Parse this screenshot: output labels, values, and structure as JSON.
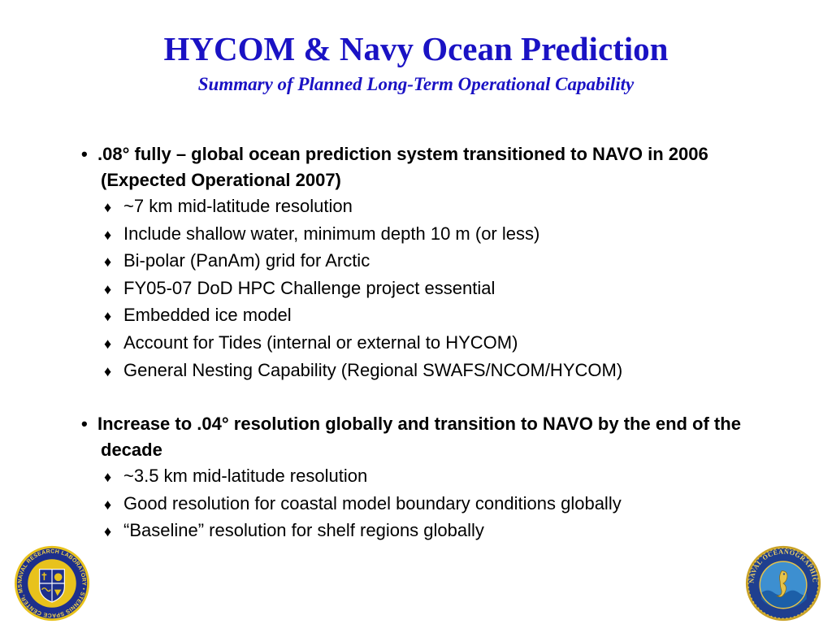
{
  "slide": {
    "title": "HYCOM & Navy Ocean Prediction",
    "subtitle": "Summary of Planned Long-Term Operational Capability"
  },
  "bullets": [
    {
      "text": ".08° fully – global ocean prediction system transitioned to NAVO in 2006 (Expected Operational 2007)",
      "subitems": [
        "~7 km mid-latitude resolution",
        "Include shallow water, minimum depth 10 m (or less)",
        "Bi-polar (PanAm) grid for Arctic",
        "FY05-07 DoD HPC Challenge project essential",
        "Embedded ice model",
        "Account for Tides (internal or external to HYCOM)",
        "General Nesting Capability (Regional SWAFS/NCOM/HYCOM)"
      ]
    },
    {
      "text": "Increase to .04° resolution globally and transition to NAVO by the end of the decade",
      "subitems": [
        "~3.5 km mid-latitude resolution",
        "Good resolution for coastal model boundary conditions globally",
        "“Baseline” resolution for shelf regions globally"
      ]
    }
  ],
  "symbols": {
    "bullet": "•",
    "subbullet": "♦"
  },
  "logos": {
    "left": {
      "icon": "naval-research-laboratory-seal-icon",
      "text": "NAVAL RESEARCH LABORATORY • STENNIS SPACE CENTER, MS"
    },
    "right": {
      "icon": "naval-oceanographic-office-seal-icon",
      "text": "NAVAL OCEANOGRAPHIC OFFICE"
    }
  },
  "colors": {
    "title": "#1a12c4",
    "text": "#000000",
    "background": "#ffffff"
  }
}
